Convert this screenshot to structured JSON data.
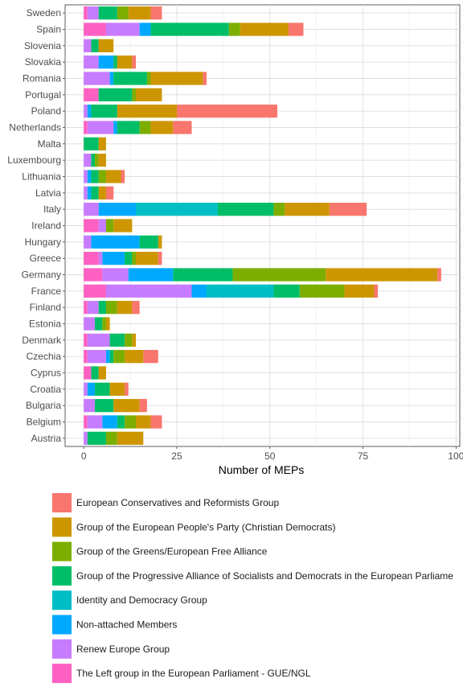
{
  "chart_data": {
    "type": "bar",
    "orientation": "horizontal",
    "stacked": true,
    "title": "",
    "xlabel": "Number of MEPs",
    "ylabel": "",
    "xlim": [
      -5,
      101
    ],
    "xticks": [
      0,
      25,
      50,
      75,
      100
    ],
    "grid": true,
    "legend_position": "bottom",
    "categories": [
      "Sweden",
      "Spain",
      "Slovenia",
      "Slovakia",
      "Romania",
      "Portugal",
      "Poland",
      "Netherlands",
      "Malta",
      "Luxembourg",
      "Lithuania",
      "Latvia",
      "Italy",
      "Ireland",
      "Hungary",
      "Greece",
      "Germany",
      "France",
      "Finland",
      "Estonia",
      "Denmark",
      "Czechia",
      "Cyprus",
      "Croatia",
      "Bulgaria",
      "Belgium",
      "Austria"
    ],
    "series": [
      {
        "name": "The Left group in the European Parliament - GUE/NGL",
        "color": "#FF61C3",
        "values": [
          1,
          6,
          0,
          0,
          0,
          4,
          0,
          1,
          0,
          0,
          0,
          0,
          0,
          4,
          0,
          4,
          5,
          6,
          1,
          0,
          1,
          1,
          2,
          0,
          0,
          1,
          0
        ]
      },
      {
        "name": "Renew Europe Group",
        "color": "#C77CFF",
        "values": [
          3,
          9,
          2,
          4,
          7,
          0,
          1,
          7,
          0,
          2,
          1,
          1,
          4,
          2,
          2,
          1,
          7,
          23,
          3,
          3,
          6,
          5,
          0,
          1,
          3,
          4,
          1
        ]
      },
      {
        "name": "Non-attached Members",
        "color": "#00A9FF",
        "values": [
          0,
          3,
          0,
          4,
          1,
          0,
          1,
          1,
          0,
          0,
          1,
          1,
          10,
          0,
          13,
          6,
          12,
          4,
          0,
          0,
          0,
          1,
          0,
          2,
          0,
          4,
          0
        ]
      },
      {
        "name": "Identity and Democracy Group",
        "color": "#00BFC4",
        "values": [
          0,
          0,
          0,
          0,
          0,
          0,
          0,
          0,
          0,
          0,
          0,
          0,
          22,
          0,
          0,
          0,
          0,
          18,
          0,
          0,
          0,
          0,
          0,
          0,
          0,
          0,
          0
        ]
      },
      {
        "name": "Group of the Progressive Alliance of Socialists and Democrats in the European Parliament",
        "color": "#00BE67",
        "values": [
          5,
          21,
          2,
          1,
          9,
          9,
          7,
          6,
          4,
          1,
          2,
          2,
          15,
          0,
          5,
          2,
          16,
          7,
          2,
          2,
          4,
          1,
          2,
          4,
          5,
          2,
          5
        ]
      },
      {
        "name": "Group of the Greens/European Free Alliance",
        "color": "#7CAE00",
        "values": [
          3,
          3,
          0,
          0,
          1,
          1,
          0,
          3,
          0,
          1,
          2,
          0,
          3,
          2,
          0,
          1,
          25,
          12,
          3,
          1,
          2,
          3,
          0,
          0,
          0,
          3,
          3
        ]
      },
      {
        "name": "Group of the European People's Party (Christian Democrats)",
        "color": "#CD9600",
        "values": [
          6,
          13,
          4,
          4,
          14,
          7,
          16,
          6,
          2,
          2,
          4,
          2,
          12,
          5,
          1,
          6,
          30,
          8,
          4,
          1,
          1,
          5,
          2,
          4,
          7,
          4,
          7
        ]
      },
      {
        "name": "European Conservatives and Reformists Group",
        "color": "#F8766D",
        "values": [
          3,
          4,
          0,
          1,
          1,
          0,
          27,
          5,
          0,
          0,
          1,
          2,
          10,
          0,
          0,
          1,
          1,
          1,
          2,
          0,
          0,
          4,
          0,
          1,
          2,
          3,
          0
        ]
      }
    ],
    "legend_entries": [
      "European Conservatives and Reformists Group",
      "Group of the European People's Party (Christian Democrats)",
      "Group of the Greens/European Free Alliance",
      "Group of the Progressive Alliance of Socialists and Democrats in the European Parliame",
      "Identity and Democracy Group",
      "Non-attached Members",
      "Renew Europe Group",
      "The Left group in the European Parliament - GUE/NGL"
    ],
    "legend_colors": [
      "#F8766D",
      "#CD9600",
      "#7CAE00",
      "#00BE67",
      "#00BFC4",
      "#00A9FF",
      "#C77CFF",
      "#FF61C3"
    ]
  }
}
